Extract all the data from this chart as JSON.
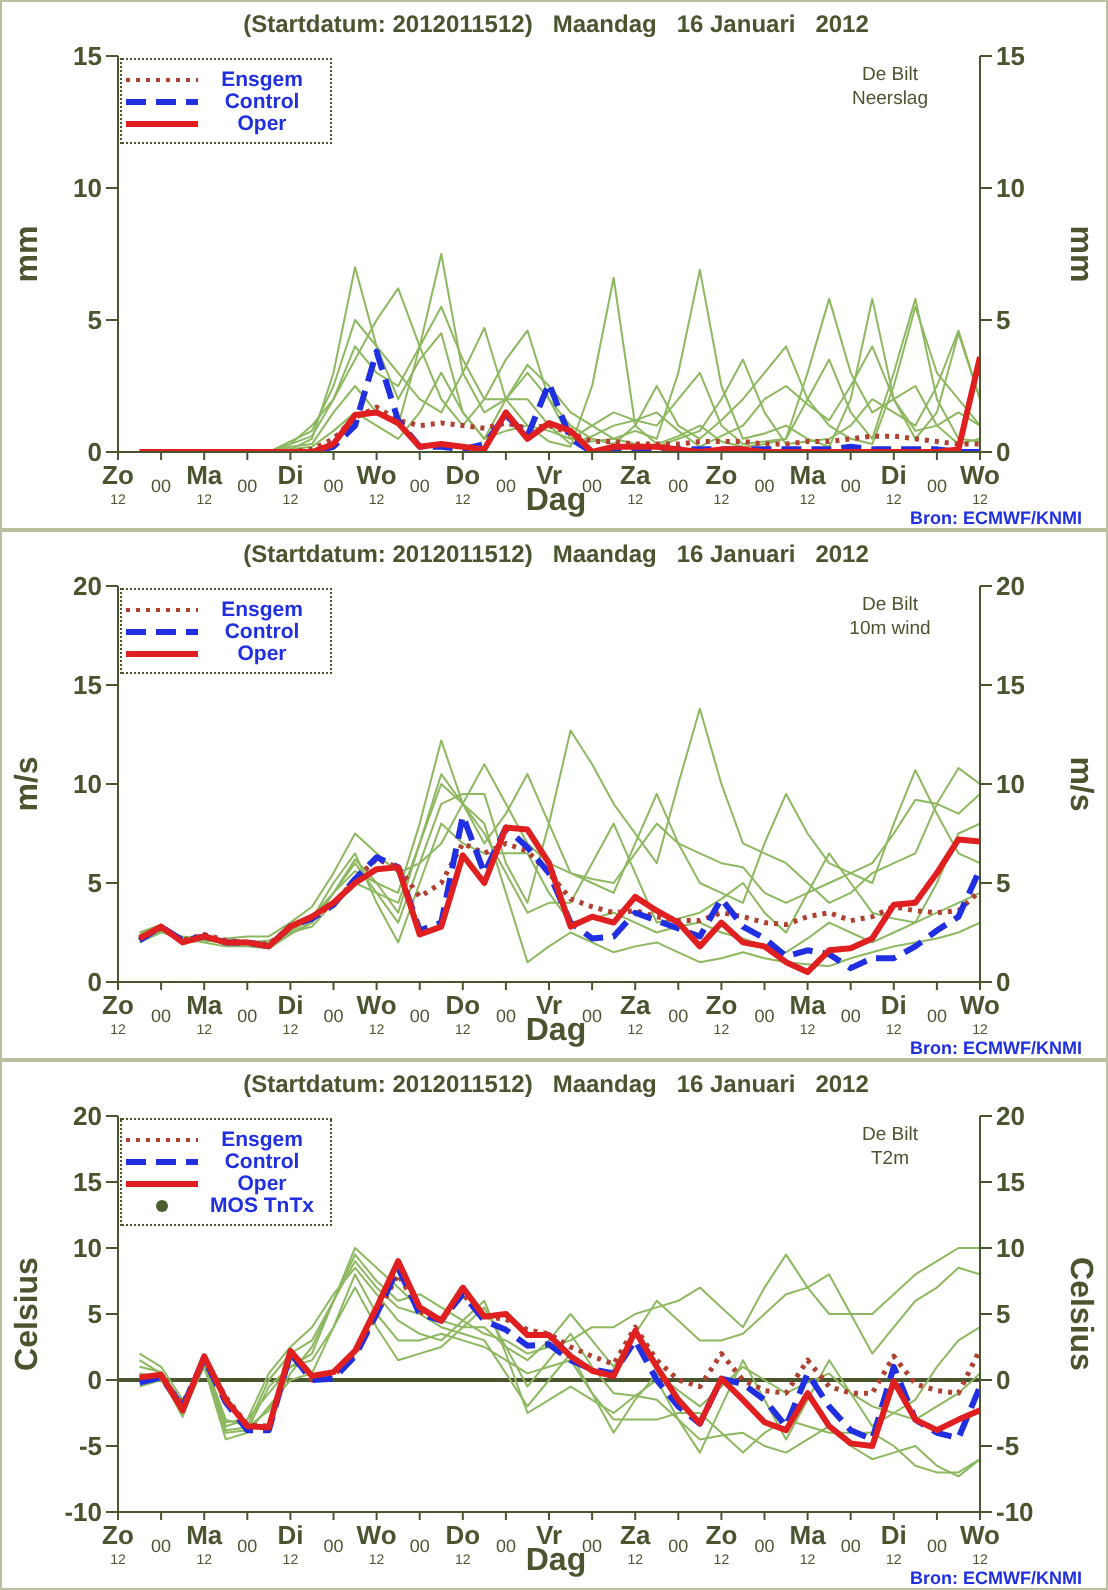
{
  "chart_data": [
    {
      "type": "line",
      "title": "(Startdatum: 2012011512)   Maandag   16 Januari   2012",
      "xlabel": "Dag",
      "ylabel": "mm",
      "y2label": "mm",
      "annotations": [
        "De Bilt\nNeerslag",
        "Bron: ECMWF/KNMI"
      ],
      "legend": "top left",
      "categories": [
        "Zo$_{12}$",
        null,
        "00",
        null,
        "Ma$_{12}$",
        null,
        "00",
        null,
        "Di$_{12}$",
        null,
        "00",
        null,
        "Wo$_{12}$",
        null,
        "00",
        null,
        "Do$_{12}$",
        null,
        "00",
        null,
        "Vr",
        null,
        "00",
        null,
        "Za$_{12}$",
        null,
        "00",
        null,
        "Zo$_{12}$",
        null,
        "00",
        null,
        "Ma$_{12}$",
        null,
        "00",
        null,
        "Di$_{12}$",
        null,
        "00",
        null,
        "Wo$_{12}$"
      ],
      "ylim": [
        0,
        15
      ],
      "yticks": [
        0,
        5,
        10,
        15
      ],
      "y2lim": [
        0,
        15
      ],
      "y2ticks": [
        0,
        5,
        10,
        15
      ],
      "series": [
        {
          "color": "#8db860",
          "line_style": "solid",
          "values": [
            null,
            null,
            null,
            null,
            null,
            0,
            0,
            0,
            0.1,
            0.5,
            3.0,
            7.0,
            4.0,
            2.0,
            3.5,
            4.5,
            1.5,
            0.5,
            0.8,
            1.0,
            0.4,
            0.2,
            2.5,
            6.6,
            1.0,
            0.3,
            0.6,
            1.0,
            0.4,
            0.2,
            0.3,
            0.5,
            2.0,
            3.5,
            1.5,
            0.5,
            3.0,
            5.8,
            2.0,
            0.5,
            0.4
          ]
        },
        {
          "color": "#8db860",
          "line_style": "solid",
          "values": [
            null,
            null,
            null,
            null,
            null,
            0,
            0,
            0,
            0.3,
            1.0,
            2.0,
            3.5,
            5.0,
            6.2,
            4.0,
            2.0,
            1.0,
            2.0,
            3.5,
            4.6,
            2.0,
            0.5,
            0.4,
            0.5,
            0.8,
            0.5,
            3.0,
            6.9,
            2.5,
            0.5,
            0.7,
            1.0,
            0.5,
            0.2,
            2.0,
            5.8,
            2.0,
            0.5,
            1.5,
            4.5,
            2.0
          ]
        },
        {
          "color": "#8db860",
          "line_style": "solid",
          "values": [
            null,
            null,
            null,
            null,
            null,
            0,
            0,
            0,
            0.2,
            0.3,
            1.5,
            2.5,
            1.5,
            1.0,
            4.0,
            7.5,
            3.0,
            1.5,
            2.0,
            3.0,
            2.0,
            1.0,
            0.5,
            0.3,
            1.0,
            2.5,
            1.0,
            0.5,
            1.2,
            2.0,
            3.0,
            4.0,
            2.0,
            1.0,
            0.5,
            0.3,
            2.5,
            5.5,
            3.0,
            2.0,
            1.0
          ]
        },
        {
          "color": "#8db860",
          "line_style": "solid",
          "values": [
            null,
            null,
            null,
            null,
            null,
            0,
            0,
            0,
            0.4,
            0.8,
            2.5,
            5.0,
            4.0,
            3.0,
            2.0,
            1.5,
            3.0,
            4.7,
            2.0,
            1.0,
            0.8,
            0.5,
            1.0,
            1.5,
            1.2,
            1.0,
            2.0,
            3.0,
            1.0,
            0.3,
            0.4,
            0.5,
            3.0,
            5.8,
            3.0,
            1.5,
            2.0,
            2.5,
            1.0,
            0.3,
            0.5
          ]
        },
        {
          "color": "#8db860",
          "line_style": "solid",
          "values": [
            null,
            null,
            null,
            null,
            null,
            0,
            0,
            0,
            0.1,
            0.2,
            0.8,
            1.5,
            1.0,
            0.5,
            1.5,
            3.0,
            1.5,
            0.5,
            2.0,
            3.3,
            2.5,
            1.5,
            1.0,
            0.5,
            0.3,
            0.2,
            0.5,
            0.8,
            2.0,
            3.5,
            1.5,
            0.3,
            0.4,
            0.5,
            1.0,
            2.0,
            1.5,
            1.0,
            2.5,
            4.6,
            2.0
          ]
        },
        {
          "color": "#8db860",
          "line_style": "solid",
          "values": [
            null,
            null,
            null,
            null,
            null,
            0,
            0,
            0,
            0.3,
            0.6,
            2.0,
            4.0,
            3.0,
            2.5,
            4.0,
            5.5,
            3.5,
            2.0,
            2.0,
            2.0,
            1.0,
            0.3,
            0.6,
            1.0,
            1.2,
            1.5,
            0.8,
            0.2,
            0.6,
            1.0,
            2.0,
            2.5,
            1.8,
            1.2,
            2.5,
            4.0,
            2.0,
            0.8,
            1.0,
            1.5,
            1.0
          ]
        },
        {
          "name": "Ensgem",
          "color": "#b04030",
          "line_style": "dotted",
          "values": [
            null,
            null,
            null,
            null,
            null,
            null,
            null,
            0,
            0,
            0.1,
            0.5,
            1.3,
            1.7,
            1.2,
            1.0,
            1.1,
            1.0,
            0.9,
            1.1,
            0.9,
            1.0,
            0.7,
            0.4,
            0.4,
            0.3,
            0.3,
            0.3,
            0.4,
            0.4,
            0.4,
            0.3,
            0.3,
            0.4,
            0.4,
            0.5,
            0.6,
            0.6,
            0.5,
            0.4,
            0.3,
            0.3
          ]
        },
        {
          "name": "Control",
          "color": "#2030e0",
          "line_style": "dashed",
          "values": [
            null,
            null,
            null,
            null,
            null,
            null,
            null,
            null,
            0,
            0,
            0.2,
            1.0,
            3.8,
            1.2,
            0.2,
            0.2,
            0.1,
            0.3,
            1.4,
            0.6,
            2.6,
            0.5,
            0.0,
            0.1,
            0.1,
            0.1,
            0.1,
            0.1,
            0.1,
            0.1,
            0.1,
            0.1,
            0.1,
            0.1,
            0.2,
            0.1,
            0.1,
            0.1,
            0.1,
            0.0,
            0.0
          ]
        },
        {
          "name": "Oper",
          "color": "#e02020",
          "line_style": "solid",
          "values": [
            null,
            0,
            0,
            0,
            0,
            0,
            0,
            0,
            0,
            0,
            0.3,
            1.4,
            1.5,
            1.1,
            0.2,
            0.3,
            0.2,
            0.1,
            1.5,
            0.5,
            1.1,
            0.8,
            0.0,
            0.2,
            0.2,
            0.2,
            0.1,
            0.0,
            0.1,
            0.1,
            0.0,
            0,
            0,
            0,
            0,
            0,
            0,
            0,
            0,
            0.1,
            3.6
          ]
        }
      ]
    },
    {
      "type": "line",
      "title": "(Startdatum: 2012011512)   Maandag   16 Januari   2012",
      "xlabel": "Dag",
      "ylabel": "m/s",
      "y2label": "m/s",
      "annotations": [
        "De Bilt\n10m wind",
        "Bron: ECMWF/KNMI"
      ],
      "legend": "top left",
      "categories": [
        "Zo$_{12}$",
        null,
        "00",
        null,
        "Ma$_{12}$",
        null,
        "00",
        null,
        "Di$_{12}$",
        null,
        "00",
        null,
        "Wo$_{12}$",
        null,
        "00",
        null,
        "Do$_{12}$",
        null,
        "00",
        null,
        "Vr",
        null,
        "00",
        null,
        "Za$_{12}$",
        null,
        "00",
        null,
        "Zo$_{12}$",
        null,
        "00",
        null,
        "Ma$_{12}$",
        null,
        "00",
        null,
        "Di$_{12}$",
        null,
        "00",
        null,
        "Wo$_{12}$"
      ],
      "ylim": [
        0,
        20
      ],
      "yticks": [
        0,
        5,
        10,
        15,
        20
      ],
      "y2lim": [
        0,
        20
      ],
      "y2ticks": [
        0,
        5,
        10,
        15,
        20
      ],
      "series": [
        {
          "color": "#8db860",
          "line_style": "solid",
          "values": [
            null,
            2.3,
            2.6,
            2.0,
            2.1,
            2.0,
            2.0,
            1.9,
            2.6,
            3.3,
            4.5,
            5.6,
            5.0,
            4.5,
            8.0,
            12.2,
            9.0,
            7.0,
            8.5,
            10.5,
            8.0,
            5.5,
            5.2,
            5.0,
            6.5,
            8.0,
            7.0,
            6.5,
            6.0,
            5.8,
            4.5,
            4.0,
            4.5,
            5.0,
            5.5,
            6.0,
            7.5,
            9.2,
            9.0,
            8.5,
            9.5
          ]
        },
        {
          "color": "#8db860",
          "line_style": "solid",
          "values": [
            null,
            2.2,
            2.7,
            2.2,
            2.3,
            2.1,
            1.9,
            1.8,
            2.5,
            3.0,
            4.5,
            6.0,
            4.5,
            3.0,
            6.0,
            9.0,
            9.5,
            9.5,
            6.0,
            4.0,
            8.0,
            12.7,
            11.0,
            9.0,
            7.5,
            6.0,
            10.0,
            13.8,
            10.0,
            7.0,
            6.5,
            6.0,
            5.0,
            4.0,
            4.5,
            5.5,
            6.0,
            6.5,
            9.0,
            10.8,
            10.0
          ]
        },
        {
          "color": "#8db860",
          "line_style": "solid",
          "values": [
            null,
            2.4,
            2.8,
            2.1,
            2.2,
            2.0,
            2.0,
            2.0,
            2.6,
            3.2,
            5.0,
            6.5,
            4.0,
            2.0,
            5.0,
            8.0,
            7.0,
            6.5,
            6.5,
            6.5,
            4.5,
            3.0,
            3.2,
            3.5,
            3.0,
            2.5,
            2.8,
            3.0,
            2.5,
            2.2,
            1.8,
            1.5,
            2.2,
            3.0,
            2.5,
            2.0,
            2.5,
            3.0,
            3.5,
            4.0,
            4.5
          ]
        },
        {
          "color": "#8db860",
          "line_style": "solid",
          "values": [
            null,
            2.0,
            2.5,
            2.3,
            2.2,
            1.9,
            2.0,
            2.1,
            2.5,
            2.8,
            4.0,
            5.0,
            4.5,
            4.0,
            7.0,
            10.0,
            9.0,
            8.0,
            4.5,
            1.0,
            1.8,
            2.5,
            2.0,
            1.5,
            1.8,
            2.0,
            1.5,
            1.0,
            1.2,
            1.5,
            1.2,
            1.0,
            0.9,
            0.8,
            1.2,
            1.5,
            1.8,
            2.0,
            2.2,
            2.5,
            3.0
          ]
        },
        {
          "color": "#8db860",
          "line_style": "solid",
          "values": [
            null,
            2.5,
            2.9,
            2.0,
            2.1,
            2.2,
            2.3,
            2.3,
            3.0,
            3.8,
            5.5,
            7.5,
            6.5,
            5.5,
            6.0,
            7.0,
            9.0,
            11.0,
            9.0,
            7.0,
            6.0,
            5.5,
            5.0,
            4.5,
            7.0,
            9.5,
            7.0,
            5.0,
            4.5,
            4.0,
            7.0,
            9.5,
            7.5,
            6.0,
            5.5,
            5.0,
            8.0,
            10.7,
            8.5,
            6.5,
            6.0
          ]
        },
        {
          "color": "#8db860",
          "line_style": "solid",
          "values": [
            null,
            2.1,
            2.6,
            2.2,
            2.0,
            1.8,
            1.8,
            1.7,
            2.4,
            3.0,
            4.5,
            6.2,
            5.0,
            3.5,
            7.0,
            10.5,
            9.0,
            7.5,
            5.5,
            3.5,
            4.0,
            4.0,
            6.0,
            8.0,
            5.5,
            3.0,
            3.2,
            3.5,
            4.2,
            5.0,
            3.5,
            2.5,
            4.5,
            6.5,
            5.0,
            3.5,
            3.2,
            3.0,
            5.0,
            7.5,
            8.0
          ]
        },
        {
          "name": "Ensgem",
          "color": "#b04030",
          "line_style": "dotted",
          "values": [
            null,
            2.2,
            2.7,
            2.1,
            2.4,
            2.1,
            2.0,
            1.9,
            2.8,
            3.3,
            3.9,
            5.2,
            6.2,
            5.8,
            4.3,
            5.0,
            7.0,
            6.5,
            7.0,
            6.6,
            5.5,
            4.2,
            3.8,
            3.5,
            3.6,
            3.3,
            3.1,
            3.1,
            3.5,
            3.3,
            3.0,
            2.9,
            3.3,
            3.5,
            3.1,
            3.3,
            3.8,
            3.6,
            3.5,
            3.6,
            4.6
          ]
        },
        {
          "name": "Control",
          "color": "#2030e0",
          "line_style": "dashed",
          "values": [
            null,
            2.1,
            2.8,
            2.1,
            2.3,
            2.0,
            2.0,
            1.8,
            2.8,
            3.2,
            3.9,
            5.2,
            6.3,
            5.8,
            2.6,
            3.0,
            8.4,
            5.5,
            7.8,
            6.8,
            5.5,
            3.0,
            2.2,
            2.3,
            3.5,
            3.1,
            2.7,
            2.3,
            4.2,
            2.8,
            2.2,
            1.3,
            1.6,
            1.4,
            0.7,
            1.2,
            1.2,
            1.8,
            2.6,
            3.3,
            5.7
          ]
        },
        {
          "name": "Oper",
          "color": "#e02020",
          "line_style": "solid",
          "values": [
            null,
            2.2,
            2.8,
            2.0,
            2.3,
            2.0,
            2.0,
            1.8,
            2.8,
            3.3,
            4.0,
            5.0,
            5.7,
            5.8,
            2.4,
            2.8,
            6.4,
            5.0,
            7.8,
            7.7,
            6.0,
            2.8,
            3.3,
            3.0,
            4.3,
            3.6,
            3.0,
            1.8,
            3.0,
            2.0,
            1.8,
            1.0,
            0.5,
            1.6,
            1.7,
            2.2,
            3.9,
            4.0,
            5.5,
            7.2,
            7.1
          ]
        }
      ]
    },
    {
      "type": "line",
      "title": "(Startdatum: 2012011512)   Maandag   16 Januari   2012",
      "xlabel": "Dag",
      "ylabel": "Celsius",
      "y2label": "Celsius",
      "annotations": [
        "De Bilt\nT2m",
        "Bron: ECMWF/KNMI"
      ],
      "legend": "top left",
      "categories": [
        "Zo$_{12}$",
        null,
        "00",
        null,
        "Ma$_{12}$",
        null,
        "00",
        null,
        "Di$_{12}$",
        null,
        "00",
        null,
        "Wo$_{12}$",
        null,
        "00",
        null,
        "Do$_{12}$",
        null,
        "00",
        null,
        "Vr",
        null,
        "00",
        null,
        "Za$_{12}$",
        null,
        "00",
        null,
        "Zo$_{12}$",
        null,
        "00",
        null,
        "Ma$_{12}$",
        null,
        "00",
        null,
        "Di$_{12}$",
        null,
        "00",
        null,
        "Wo$_{12}$"
      ],
      "ylim": [
        -10,
        20
      ],
      "yticks": [
        -10,
        -5,
        0,
        5,
        10,
        15,
        20
      ],
      "y2lim": [
        -10,
        20
      ],
      "y2ticks": [
        -10,
        -5,
        0,
        5,
        10,
        15,
        20
      ],
      "ref_lines": [
        {
          "axis": "y",
          "value": 0,
          "color": "#4a5530"
        }
      ],
      "series": [
        {
          "color": "#8db860",
          "line_style": "solid",
          "values": [
            null,
            1.5,
            0.5,
            -2.0,
            1.5,
            -3.0,
            -3.5,
            0.0,
            2.0,
            3.0,
            6.0,
            9.5,
            7.5,
            6.0,
            6.5,
            5.5,
            4.5,
            3.5,
            3.0,
            2.0,
            2.5,
            3.0,
            4.0,
            4.0,
            5.0,
            5.5,
            6.0,
            7.0,
            5.5,
            4.0,
            7.0,
            9.5,
            7.0,
            5.0,
            5.0,
            5.0,
            6.5,
            8.0,
            9.0,
            10.0,
            10.0
          ]
        },
        {
          "color": "#8db860",
          "line_style": "solid",
          "values": [
            null,
            2.0,
            1.0,
            -1.5,
            1.0,
            -3.5,
            -3.0,
            -1.0,
            1.0,
            2.0,
            6.0,
            10.0,
            8.5,
            7.0,
            5.5,
            4.5,
            4.0,
            4.0,
            2.5,
            1.5,
            3.0,
            5.0,
            3.0,
            1.0,
            3.5,
            6.0,
            4.5,
            3.0,
            3.0,
            3.5,
            5.0,
            6.5,
            7.0,
            8.0,
            5.0,
            2.0,
            4.0,
            6.0,
            7.0,
            8.5,
            8.0
          ]
        },
        {
          "color": "#8db860",
          "line_style": "solid",
          "values": [
            null,
            -0.5,
            0.0,
            -2.5,
            1.0,
            -4.5,
            -4.0,
            -2.0,
            0.0,
            0.5,
            4.0,
            8.0,
            5.0,
            3.0,
            3.0,
            3.5,
            3.0,
            2.5,
            1.5,
            0.5,
            1.0,
            1.5,
            -1.0,
            -3.0,
            -3.0,
            -3.0,
            -2.5,
            -2.5,
            -4.0,
            -5.5,
            -4.0,
            -3.0,
            -3.5,
            -4.0,
            -4.0,
            -4.0,
            -5.0,
            -6.5,
            -7.0,
            -7.0,
            -6.0
          ]
        },
        {
          "color": "#8db860",
          "line_style": "solid",
          "values": [
            null,
            0.5,
            0.2,
            -2.0,
            1.2,
            -4.0,
            -3.8,
            -0.5,
            1.0,
            1.5,
            4.0,
            7.0,
            4.0,
            1.5,
            2.0,
            2.5,
            4.0,
            5.5,
            2.5,
            -0.5,
            1.5,
            3.5,
            1.0,
            -1.0,
            -1.2,
            -1.5,
            -3.0,
            -4.5,
            -4.2,
            -4.0,
            -5.0,
            -5.5,
            -4.5,
            -3.5,
            -5.0,
            -6.0,
            -5.5,
            -5.0,
            -6.5,
            -7.3,
            -6.0
          ]
        },
        {
          "color": "#8db860",
          "line_style": "solid",
          "values": [
            null,
            0.0,
            0.3,
            -2.8,
            1.5,
            -3.8,
            -3.6,
            -2.3,
            0.5,
            2.5,
            6.0,
            9.0,
            7.0,
            5.5,
            5.0,
            4.0,
            3.5,
            3.0,
            0.5,
            -2.0,
            0.0,
            2.0,
            -1.0,
            -4.0,
            -1.5,
            0.5,
            -0.8,
            -2.0,
            -0.5,
            1.0,
            0.0,
            -1.0,
            -0.2,
            0.5,
            -1.0,
            -2.0,
            -2.5,
            -3.0,
            -2.0,
            -1.0,
            0.5
          ]
        },
        {
          "color": "#8db860",
          "line_style": "solid",
          "values": [
            null,
            1.0,
            0.6,
            -1.8,
            1.4,
            -3.2,
            -3.0,
            0.5,
            2.5,
            4.0,
            6.5,
            8.5,
            6.5,
            4.5,
            3.5,
            3.0,
            4.5,
            6.0,
            2.0,
            -2.5,
            -1.5,
            -0.5,
            -1.5,
            -2.5,
            -1.2,
            0.0,
            -3.0,
            -5.5,
            -2.0,
            1.5,
            -1.5,
            -4.5,
            -1.5,
            1.5,
            -1.0,
            -3.5,
            -2.5,
            -1.5,
            1.0,
            3.0,
            4.0
          ]
        },
        {
          "name": "Ensgem",
          "color": "#b04030",
          "line_style": "dotted",
          "values": [
            null,
            0.1,
            0.2,
            -1.8,
            1.6,
            -1.3,
            -3.4,
            -3.5,
            1.9,
            0.0,
            0.3,
            2.0,
            5.0,
            8.0,
            5.2,
            4.5,
            6.5,
            4.8,
            4.6,
            3.8,
            3.5,
            2.5,
            1.8,
            1.2,
            4.0,
            1.5,
            0.0,
            -0.5,
            2.0,
            0.0,
            -0.8,
            -1.0,
            1.5,
            -0.5,
            -1.0,
            -1.0,
            1.8,
            -0.3,
            -0.8,
            -1.0,
            2.3
          ]
        },
        {
          "name": "Control",
          "color": "#2030e0",
          "line_style": "dashed",
          "values": [
            null,
            -0.2,
            0.2,
            -2.0,
            1.6,
            -1.7,
            -3.8,
            -3.8,
            2.0,
            0.0,
            0.1,
            1.8,
            5.0,
            8.5,
            5.0,
            4.5,
            6.5,
            4.5,
            3.8,
            2.6,
            2.7,
            1.5,
            0.8,
            0.5,
            3.0,
            0.0,
            -2.0,
            -3.3,
            0.1,
            -0.3,
            -1.5,
            -3.5,
            0.5,
            -2.0,
            -3.8,
            -4.5,
            1.0,
            -3.0,
            -4.0,
            -4.4,
            -0.5
          ]
        },
        {
          "name": "Oper",
          "color": "#e02020",
          "line_style": "solid",
          "values": [
            null,
            0.2,
            0.4,
            -2.3,
            1.8,
            -1.5,
            -3.5,
            -3.6,
            2.2,
            0.3,
            0.6,
            2.2,
            5.5,
            9.0,
            5.5,
            4.5,
            7.0,
            4.8,
            5.0,
            3.4,
            3.4,
            1.8,
            0.7,
            0.3,
            3.7,
            1.0,
            -1.5,
            -3.3,
            0.1,
            -1.5,
            -3.2,
            -3.8,
            -1.0,
            -3.5,
            -4.8,
            -5.0,
            -0.1,
            -3.0,
            -3.8,
            -3.0,
            -2.3
          ]
        },
        {
          "name": "MOS TnTx",
          "type": "scatter",
          "color": "#4a6030",
          "marker": "circle",
          "values": [
            null,
            null,
            null,
            null,
            null,
            null,
            null,
            null,
            null,
            null,
            null,
            null,
            null,
            null,
            null,
            null,
            null,
            null,
            null,
            null,
            null,
            null,
            null,
            null,
            null,
            null,
            null,
            null,
            null,
            null,
            null,
            null,
            null,
            null,
            null,
            null,
            null,
            null,
            null,
            null,
            null
          ]
        }
      ]
    }
  ]
}
